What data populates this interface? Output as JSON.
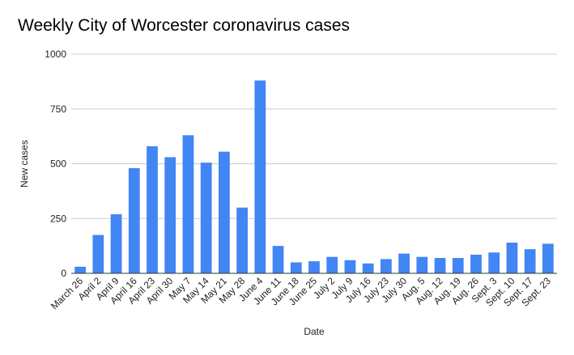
{
  "chart_data": {
    "type": "bar",
    "title": "Weekly City of Worcester coronavirus cases",
    "xlabel": "Date",
    "ylabel": "New cases",
    "ylim": [
      0,
      1000
    ],
    "yticks": [
      0,
      250,
      500,
      750,
      1000
    ],
    "grid": true,
    "legend": "none",
    "bar_color": "#4285f4",
    "categories": [
      "March 26",
      "April 2",
      "April 9",
      "April 16",
      "April 23",
      "April 30",
      "May 7",
      "May 14",
      "May 21",
      "May 28",
      "June 4",
      "June 11",
      "June 18",
      "June 25",
      "July 2",
      "July 9",
      "July 16",
      "July 23",
      "July 30",
      "Aug. 5",
      "Aug. 12",
      "Aug. 19",
      "Aug. 26",
      "Sept. 3",
      "Sept. 10",
      "Sept. 17",
      "Sept. 23"
    ],
    "values": [
      30,
      175,
      270,
      480,
      580,
      530,
      630,
      505,
      555,
      300,
      880,
      125,
      50,
      55,
      75,
      60,
      45,
      65,
      90,
      75,
      70,
      70,
      85,
      95,
      140,
      110,
      135
    ]
  }
}
